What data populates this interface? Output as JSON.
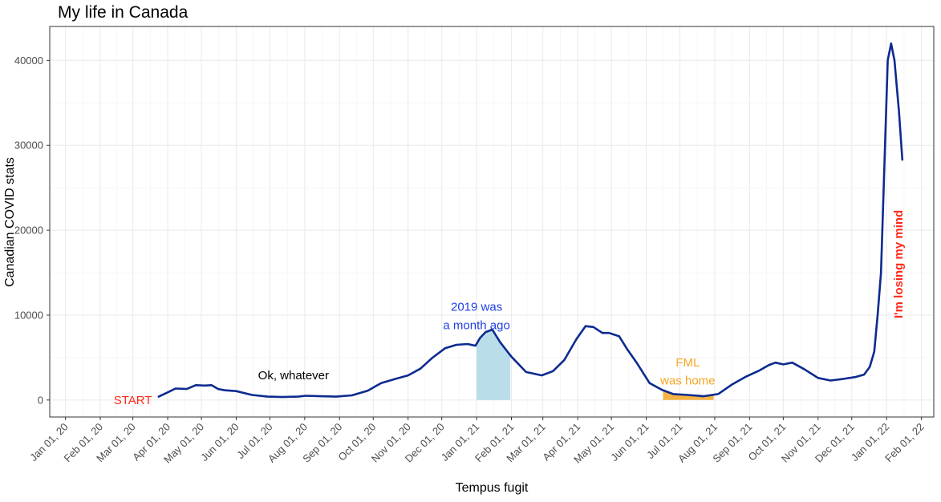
{
  "chart_data": {
    "type": "line",
    "title": "My life in Canada",
    "xlabel": "Tempus fugit",
    "ylabel": "Canadian COVID stats",
    "xlim": [
      "2019-12-18",
      "2022-02-12"
    ],
    "ylim": [
      -2000,
      44000
    ],
    "grid": true,
    "legend": "none",
    "y_ticks": [
      0,
      10000,
      20000,
      30000,
      40000
    ],
    "y_tick_labels": [
      "0",
      "10000",
      "20000",
      "30000",
      "40000"
    ],
    "x_ticks": [
      "2020-01-01",
      "2020-02-01",
      "2020-03-01",
      "2020-04-01",
      "2020-05-01",
      "2020-06-01",
      "2020-07-01",
      "2020-08-01",
      "2020-09-01",
      "2020-10-01",
      "2020-11-01",
      "2020-12-01",
      "2021-01-01",
      "2021-02-01",
      "2021-03-01",
      "2021-04-01",
      "2021-05-01",
      "2021-06-01",
      "2021-07-01",
      "2021-08-01",
      "2021-09-01",
      "2021-10-01",
      "2021-11-01",
      "2021-12-01",
      "2022-01-01",
      "2022-02-01"
    ],
    "x_tick_labels": [
      "Jan 01, 20",
      "Feb 01, 20",
      "Mar 01, 20",
      "Apr 01, 20",
      "May 01, 20",
      "Jun 01, 20",
      "Jul 01, 20",
      "Aug 01, 20",
      "Sep 01, 20",
      "Oct 01, 20",
      "Nov 01, 20",
      "Dec 01, 20",
      "Jan 01, 21",
      "Feb 01, 21",
      "Mar 01, 21",
      "Apr 01, 21",
      "May 01, 21",
      "Jun 01, 21",
      "Jul 01, 21",
      "Aug 01, 21",
      "Sep 01, 21",
      "Oct 01, 21",
      "Nov 01, 21",
      "Dec 01, 21",
      "Jan 01, 22",
      "Feb 01, 22"
    ],
    "series": [
      {
        "color": "#0d2a8f",
        "x": [
          "2020-03-24",
          "2020-04-01",
          "2020-04-08",
          "2020-04-18",
          "2020-04-26",
          "2020-05-04",
          "2020-05-10",
          "2020-05-16",
          "2020-05-22",
          "2020-06-01",
          "2020-06-15",
          "2020-06-29",
          "2020-07-12",
          "2020-07-26",
          "2020-08-02",
          "2020-08-15",
          "2020-08-29",
          "2020-09-12",
          "2020-09-26",
          "2020-10-08",
          "2020-10-21",
          "2020-11-01",
          "2020-11-12",
          "2020-11-22",
          "2020-12-04",
          "2020-12-14",
          "2020-12-24",
          "2020-12-31",
          "2021-01-04",
          "2021-01-09",
          "2021-01-15",
          "2021-01-22",
          "2021-02-01",
          "2021-02-14",
          "2021-02-28",
          "2021-03-10",
          "2021-03-20",
          "2021-03-31",
          "2021-04-08",
          "2021-04-15",
          "2021-04-23",
          "2021-04-29",
          "2021-05-08",
          "2021-05-15",
          "2021-05-24",
          "2021-06-04",
          "2021-06-15",
          "2021-06-25",
          "2021-07-08",
          "2021-07-22",
          "2021-08-04",
          "2021-08-16",
          "2021-08-28",
          "2021-09-10",
          "2021-09-18",
          "2021-09-24",
          "2021-10-01",
          "2021-10-09",
          "2021-10-20",
          "2021-11-01",
          "2021-11-12",
          "2021-11-24",
          "2021-12-04",
          "2021-12-12",
          "2021-12-17",
          "2021-12-21",
          "2021-12-24",
          "2021-12-27",
          "2022-01-02",
          "2022-01-05",
          "2022-01-08",
          "2022-01-12",
          "2022-01-15"
        ],
        "values": [
          400,
          900,
          1350,
          1300,
          1750,
          1700,
          1750,
          1300,
          1150,
          1050,
          600,
          400,
          350,
          400,
          500,
          450,
          400,
          550,
          1100,
          2000,
          2500,
          2900,
          3700,
          4900,
          6100,
          6500,
          6600,
          6400,
          7300,
          8000,
          8300,
          6800,
          5100,
          3300,
          2900,
          3400,
          4700,
          7200,
          8700,
          8600,
          7900,
          7900,
          7500,
          6000,
          4300,
          2000,
          1200,
          700,
          600,
          450,
          700,
          1800,
          2700,
          3500,
          4100,
          4400,
          4200,
          4400,
          3600,
          2600,
          2300,
          2500,
          2700,
          3000,
          3900,
          5700,
          10000,
          15000,
          40000,
          42000,
          40000,
          34000,
          28300
        ]
      }
    ],
    "shaded_regions": [
      {
        "x_start": "2021-01-01",
        "x_end": "2021-01-31",
        "color": "#add8e6",
        "follows_series": true
      },
      {
        "x_start": "2021-06-16",
        "x_end": "2021-07-31",
        "color": "#f5a623",
        "follows_series": true
      }
    ],
    "annotations": [
      {
        "text": "START",
        "x": "2020-03-01",
        "y": 0,
        "color": "#ff2a1a",
        "bold": false,
        "rotate": false
      },
      {
        "text": "Ok, whatever",
        "x": "2020-07-22",
        "y": 2900,
        "color": "#000000",
        "bold": false,
        "rotate": false
      },
      {
        "text": "2019 was",
        "x": "2021-01-01",
        "y": 11000,
        "color": "#1f3fe6",
        "bold": false,
        "rotate": false
      },
      {
        "text": "a month ago",
        "x": "2021-01-01",
        "y": 8800,
        "color": "#1f3fe6",
        "bold": false,
        "rotate": false
      },
      {
        "text": "FML",
        "x": "2021-07-08",
        "y": 4400,
        "color": "#f5a623",
        "bold": false,
        "rotate": false
      },
      {
        "text": "was home",
        "x": "2021-07-08",
        "y": 2300,
        "color": "#f5a623",
        "bold": false,
        "rotate": false
      },
      {
        "text": "I'm losing my mind",
        "x": "2022-01-10",
        "y": 16000,
        "color": "#ff2a1a",
        "bold": true,
        "rotate": true
      }
    ]
  }
}
